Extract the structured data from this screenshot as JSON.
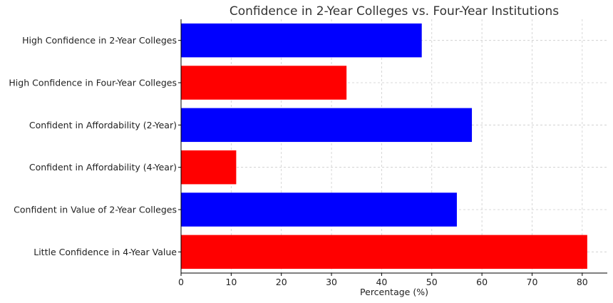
{
  "chart_data": {
    "type": "bar",
    "orientation": "horizontal",
    "title": "Confidence in 2-Year Colleges vs. Four-Year Institutions",
    "xlabel": "Percentage (%)",
    "ylabel": "",
    "categories": [
      "High Confidence in 2-Year Colleges",
      "High Confidence in Four-Year Colleges",
      "Confident in Affordability (2-Year)",
      "Confident in Affordability (4-Year)",
      "Confident in Value of 2-Year Colleges",
      "Little Confidence in 4-Year Value"
    ],
    "values": [
      48,
      33,
      58,
      11,
      55,
      81
    ],
    "colors": [
      "#0000ff",
      "#ff0000",
      "#0000ff",
      "#ff0000",
      "#0000ff",
      "#ff0000"
    ],
    "xlim": [
      0,
      85
    ],
    "xticks": [
      0,
      10,
      20,
      30,
      40,
      50,
      60,
      70,
      80
    ],
    "grid": true
  }
}
